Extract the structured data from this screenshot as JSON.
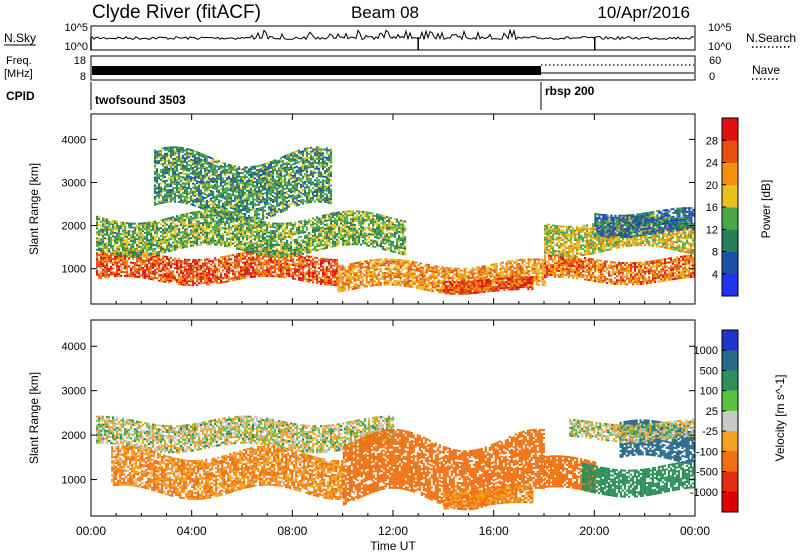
{
  "header": {
    "station": "Clyde River (fitACF)",
    "beam": "Beam 08",
    "date": "10/Apr/2016"
  },
  "noise_panel": {
    "left_label": "N.Sky",
    "left_ticks": [
      "10^5",
      "10^0"
    ],
    "right_ticks": [
      "10^5",
      "10^0"
    ],
    "right_label": "N.Search"
  },
  "freq_panel": {
    "left_label_1": "Freq.",
    "left_label_2": "[MHz]",
    "left_ticks": [
      "18",
      "8"
    ],
    "right_ticks": [
      "60",
      "0"
    ],
    "right_label": "Nave"
  },
  "cpid": {
    "label": "CPID",
    "segments": [
      {
        "name": "twofsound 3503",
        "start_hour": 0
      },
      {
        "name": "rbsp 200",
        "start_hour": 18
      }
    ]
  },
  "time_axis": {
    "label": "Time UT",
    "ticks": [
      "00:00",
      "04:00",
      "08:00",
      "12:00",
      "16:00",
      "20:00",
      "00:00"
    ],
    "tick_hours": [
      0,
      4,
      8,
      12,
      16,
      20,
      24
    ]
  },
  "chart_data": [
    {
      "type": "heatmap",
      "ylabel": "Slant Range [km]",
      "yticks": [
        "1000",
        "2000",
        "3000",
        "4000"
      ],
      "ytick_values": [
        1000,
        2000,
        3000,
        4000
      ],
      "ylim": [
        180,
        4590
      ],
      "xlim_hours": [
        0,
        24
      ],
      "colorbar": {
        "label": "Power [dB]",
        "ticks": [
          "4",
          "8",
          "12",
          "16",
          "20",
          "24",
          "28"
        ],
        "tick_values": [
          4,
          8,
          12,
          16,
          20,
          24,
          28
        ],
        "range": [
          0,
          32
        ],
        "colors": [
          "#2233ee",
          "#1b4fa8",
          "#2a7d5a",
          "#4aa84a",
          "#e8c020",
          "#f39010",
          "#e85010",
          "#e01010"
        ]
      },
      "bands": [
        {
          "h0": 0.2,
          "h1": 9.8,
          "r0": 700,
          "r1": 1300,
          "value": 26
        },
        {
          "h0": 0.2,
          "h1": 12.5,
          "r0": 1400,
          "r1": 2200,
          "value": 14
        },
        {
          "h0": 9.8,
          "h1": 18.0,
          "r0": 500,
          "r1": 1100,
          "value": 22
        },
        {
          "h0": 14.0,
          "h1": 17.5,
          "r0": 450,
          "r1": 750,
          "value": 28
        },
        {
          "h0": 18.0,
          "h1": 24.0,
          "r0": 700,
          "r1": 1200,
          "value": 24
        },
        {
          "h0": 18.0,
          "h1": 24.0,
          "r0": 1400,
          "r1": 2100,
          "value": 18
        },
        {
          "h0": 20.0,
          "h1": 24.0,
          "r0": 1800,
          "r1": 2300,
          "value": 8
        },
        {
          "h0": 2.5,
          "h1": 9.5,
          "r0": 2300,
          "r1": 3600,
          "value": 12
        }
      ]
    },
    {
      "type": "heatmap",
      "ylabel": "Slant Range [km]",
      "yticks": [
        "1000",
        "2000",
        "3000",
        "4000"
      ],
      "ytick_values": [
        1000,
        2000,
        3000,
        4000
      ],
      "ylim": [
        180,
        4590
      ],
      "xlim_hours": [
        0,
        24
      ],
      "colorbar": {
        "label": "Velocity [m s^-1]",
        "ticks": [
          "1000",
          "500",
          "100",
          "25",
          "-25",
          "-100",
          "-500",
          "-1000"
        ],
        "colors": [
          "#2233cc",
          "#2a6a8a",
          "#2f8f5a",
          "#5cc040",
          "#c8c8c8",
          "#f4a020",
          "#f07010",
          "#e03010",
          "#e00000"
        ]
      },
      "bands": [
        {
          "h0": 0.2,
          "h1": 12.0,
          "r0": 1700,
          "r1": 2300,
          "value": 0
        },
        {
          "h0": 0.8,
          "h1": 10.0,
          "r0": 700,
          "r1": 1600,
          "value": -100
        },
        {
          "h0": 10.0,
          "h1": 18.0,
          "r0": 550,
          "r1": 1900,
          "value": -300
        },
        {
          "h0": 14.0,
          "h1": 17.5,
          "r0": 400,
          "r1": 800,
          "value": -100
        },
        {
          "h0": 18.0,
          "h1": 20.0,
          "r0": 700,
          "r1": 1400,
          "value": -300
        },
        {
          "h0": 19.5,
          "h1": 24.0,
          "r0": 700,
          "r1": 1300,
          "value": 150
        },
        {
          "h0": 21.0,
          "h1": 24.0,
          "r0": 1400,
          "r1": 2200,
          "value": 600
        },
        {
          "h0": 19.0,
          "h1": 24.0,
          "r0": 1900,
          "r1": 2300,
          "value": 0
        }
      ]
    }
  ]
}
